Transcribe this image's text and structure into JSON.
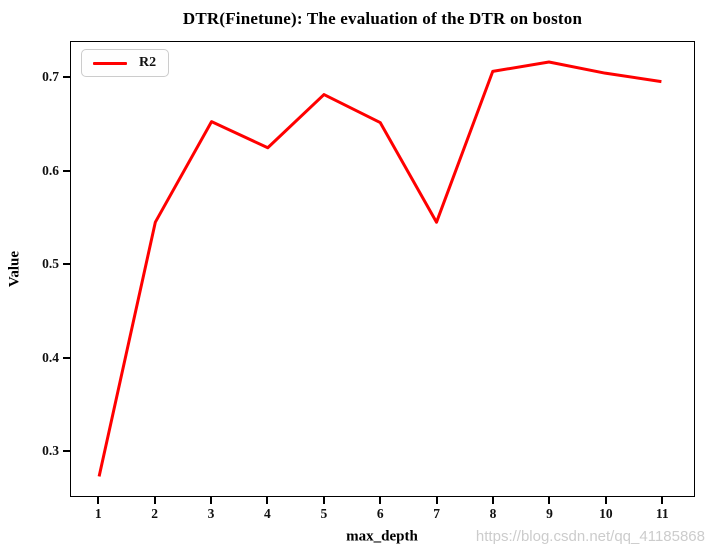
{
  "watermark": {
    "text": "https://blog.csdn.net/qq_41185868",
    "color": "#cccccc"
  },
  "chart_data": {
    "type": "line",
    "title": "DTR(Finetune): The evaluation of the DTR on boston",
    "xlabel": "max_depth",
    "ylabel": "Value",
    "x": [
      1,
      2,
      3,
      4,
      5,
      6,
      7,
      8,
      9,
      10,
      11
    ],
    "series": [
      {
        "name": "R2",
        "color": "#ff0000",
        "values": [
          0.272,
          0.545,
          0.653,
          0.625,
          0.682,
          0.652,
          0.545,
          0.707,
          0.717,
          0.705,
          0.696
        ]
      }
    ],
    "xticks": [
      "1",
      "2",
      "3",
      "4",
      "5",
      "6",
      "7",
      "8",
      "9",
      "10",
      "11"
    ],
    "yticks": [
      "0.3",
      "0.4",
      "0.5",
      "0.6",
      "0.7"
    ],
    "xlim": [
      0.5,
      11.58
    ],
    "ylim": [
      0.251,
      0.7385
    ],
    "grid": false,
    "legend_position": "upper left",
    "spine_color": "#000000"
  }
}
